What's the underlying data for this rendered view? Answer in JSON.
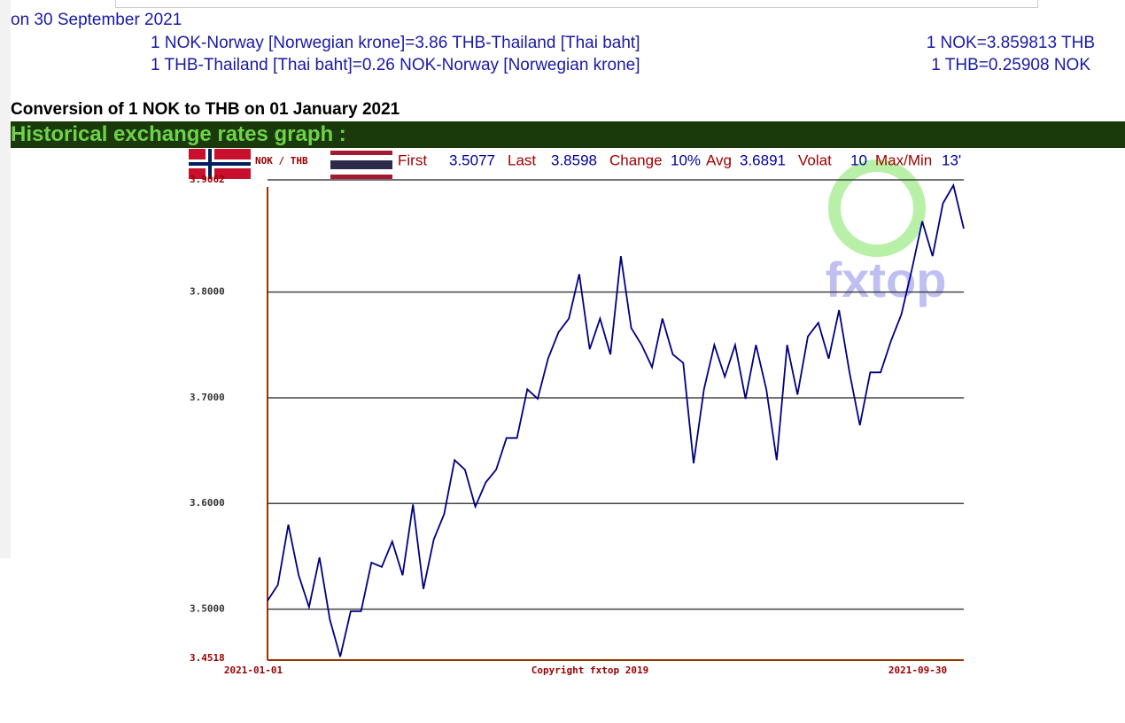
{
  "header": {
    "date_line": "on 30 September 2021",
    "rows": [
      {
        "text": "1 NOK-Norway [Norwegian krone]=3.86 THB-Thailand [Thai baht]",
        "rate": "1 NOK=3.859813 THB"
      },
      {
        "text": "1 THB-Thailand [Thai baht]=0.26 NOK-Norway [Norwegian krone]",
        "rate": "1 THB=0.25908 NOK"
      }
    ]
  },
  "conversion_title": "Conversion of 1 NOK to THB on 01 January 2021",
  "graph_heading": "Historical exchange rates graph :",
  "chart_data": {
    "type": "line",
    "pair": "NOK / THB",
    "stats": [
      {
        "label": "First",
        "value": "3.5077"
      },
      {
        "label": "Last",
        "value": "3.8598"
      },
      {
        "label": "Change",
        "value": "10%"
      },
      {
        "label": "Avg",
        "value": "3.6891"
      },
      {
        "label": "Volat",
        "value": "10"
      },
      {
        "label": "Max/Min",
        "value": "13'"
      }
    ],
    "watermark": "fxtop",
    "copyright": "Copyright fxtop 2019",
    "color": "#000080",
    "xlim": [
      "2021-01-01",
      "2021-09-30"
    ],
    "ylim": [
      3.4518,
      3.9062
    ],
    "yticks": [
      {
        "value": 3.4518,
        "label": "3.4518"
      },
      {
        "value": 3.5,
        "label": "3.5000"
      },
      {
        "value": 3.6,
        "label": "3.6000"
      },
      {
        "value": 3.7,
        "label": "3.7000"
      },
      {
        "value": 3.8,
        "label": "3.8000"
      },
      {
        "value": 3.9062,
        "label": "3.9062"
      }
    ],
    "values": [
      3.508,
      3.523,
      3.58,
      3.532,
      3.502,
      3.549,
      3.49,
      3.455,
      3.498,
      3.498,
      3.544,
      3.54,
      3.564,
      3.532,
      3.599,
      3.519,
      3.566,
      3.59,
      3.641,
      3.632,
      3.597,
      3.62,
      3.632,
      3.662,
      3.662,
      3.708,
      3.699,
      3.737,
      3.762,
      3.775,
      3.817,
      3.746,
      3.775,
      3.741,
      3.834,
      3.766,
      3.75,
      3.729,
      3.775,
      3.741,
      3.733,
      3.638,
      3.708,
      3.75,
      3.72,
      3.75,
      3.699,
      3.75,
      3.708,
      3.641,
      3.75,
      3.703,
      3.758,
      3.771,
      3.737,
      3.783,
      3.724,
      3.674,
      3.724,
      3.724,
      3.754,
      3.779,
      3.821,
      3.867,
      3.834,
      3.884,
      3.901,
      3.86
    ]
  }
}
